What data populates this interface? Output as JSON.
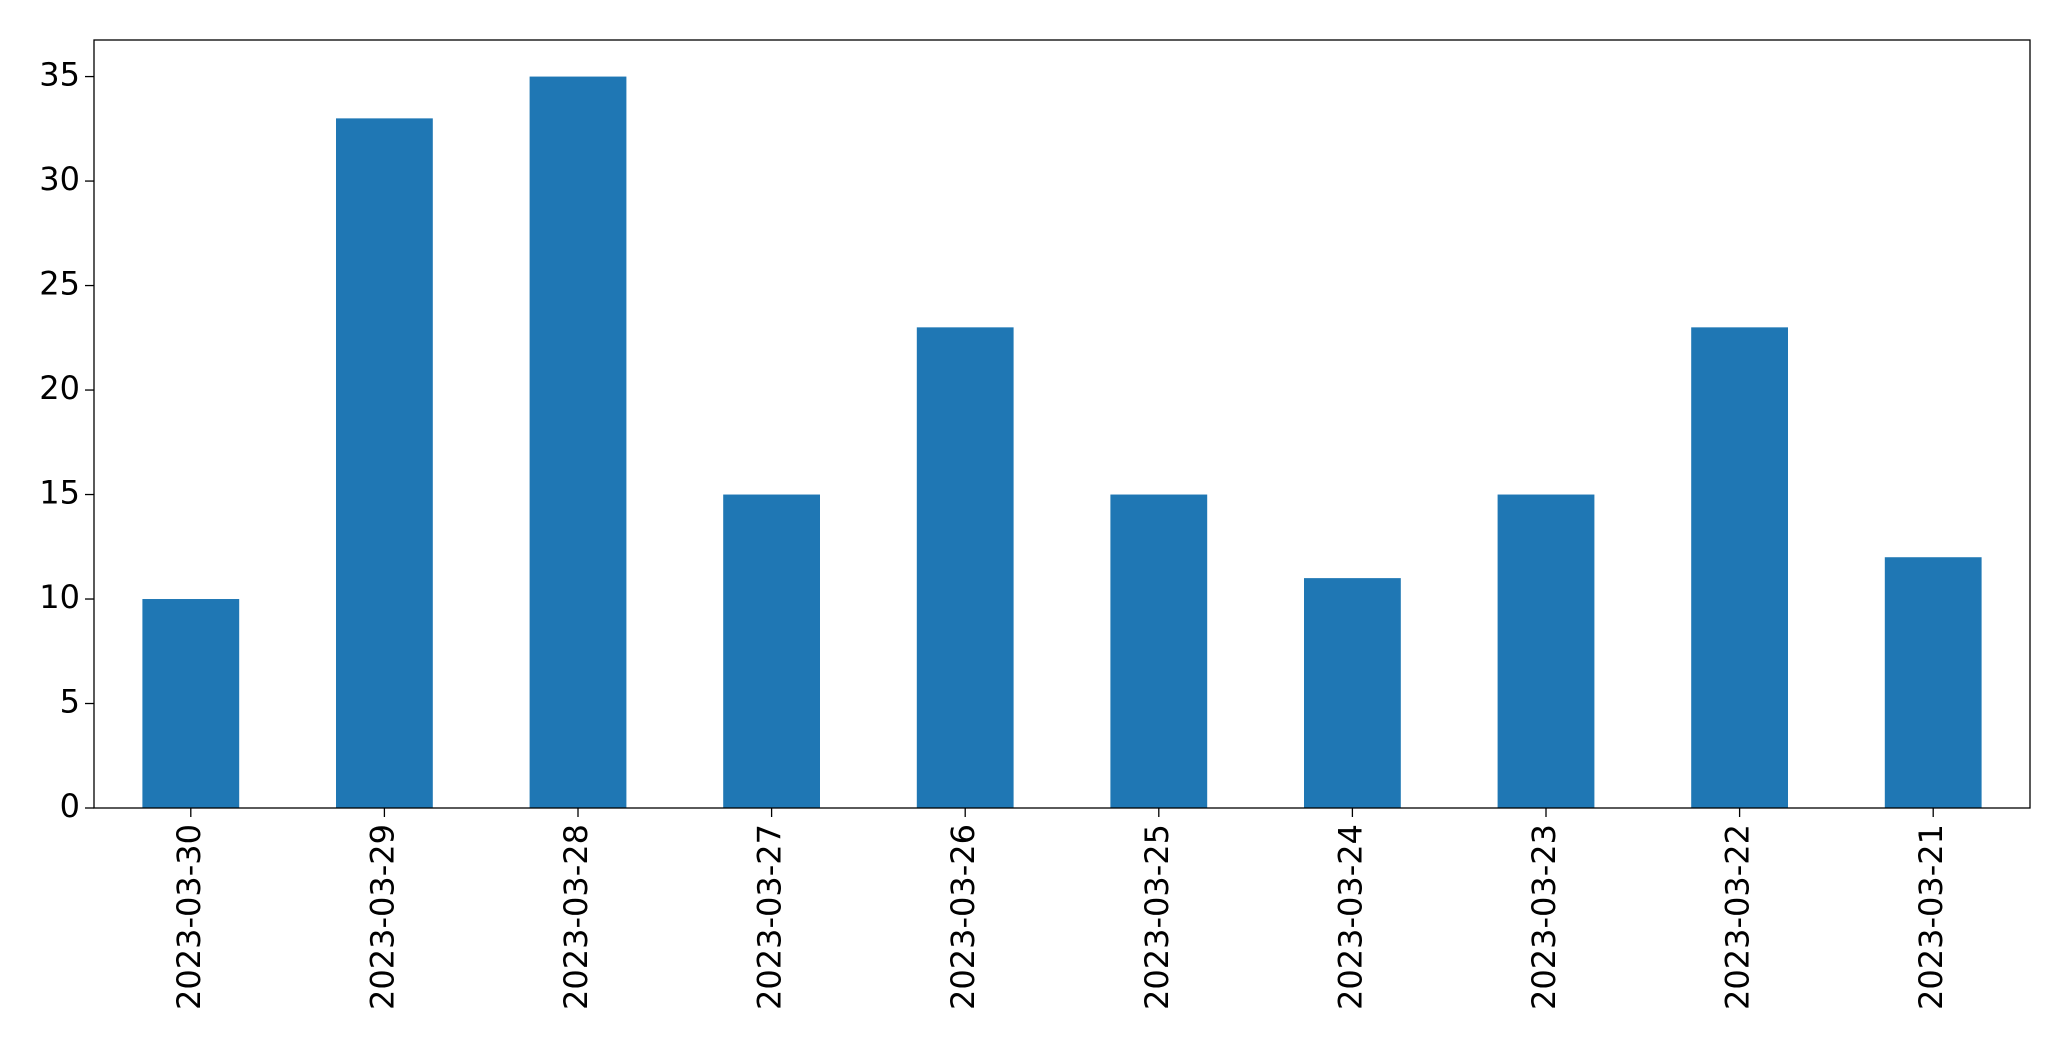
{
  "chart_data": {
    "type": "bar",
    "categories": [
      "2023-03-30",
      "2023-03-29",
      "2023-03-28",
      "2023-03-27",
      "2023-03-26",
      "2023-03-25",
      "2023-03-24",
      "2023-03-23",
      "2023-03-22",
      "2023-03-21"
    ],
    "values": [
      10,
      33,
      35,
      15,
      23,
      15,
      11,
      15,
      23,
      12
    ],
    "color": "#1f77b4",
    "ylim": [
      0,
      36.75
    ],
    "yticks": [
      0,
      5,
      10,
      15,
      20,
      25,
      30,
      35
    ],
    "grid": false
  }
}
